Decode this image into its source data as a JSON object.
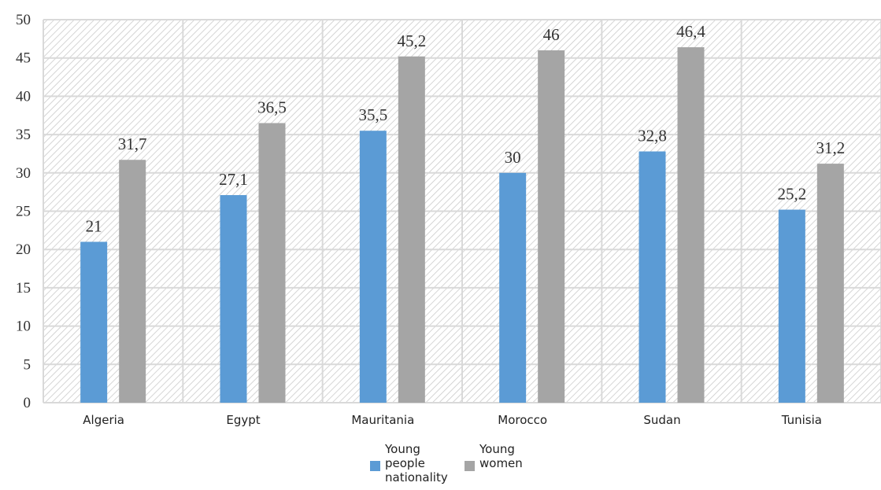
{
  "chart_data": {
    "type": "bar",
    "categories": [
      "Algeria",
      "Egypt",
      "Mauritania",
      "Morocco",
      "Sudan",
      "Tunisia"
    ],
    "series": [
      {
        "name": "Young people nationality",
        "values": [
          21,
          27.1,
          35.5,
          30,
          32.8,
          25.2
        ],
        "labels": [
          "21",
          "27,1",
          "35,5",
          "30",
          "32,8",
          "25,2"
        ],
        "color": "#5b9bd5"
      },
      {
        "name": "Young women",
        "values": [
          31.7,
          36.5,
          45.2,
          46,
          46.4,
          31.2
        ],
        "labels": [
          "31,7",
          "36,5",
          "45,2",
          "46",
          "46,4",
          "31,2"
        ],
        "color": "#a5a5a5"
      }
    ],
    "yticks": [
      "0",
      "5",
      "10",
      "15",
      "20",
      "25",
      "30",
      "35",
      "40",
      "45",
      "50"
    ],
    "ylim": [
      0,
      50
    ],
    "grid": true,
    "plot_background": "hatched",
    "legend_position": "bottom",
    "legend": {
      "items": [
        {
          "lines": [
            "Young",
            "people",
            "nationality"
          ],
          "color": "#5b9bd5"
        },
        {
          "lines": [
            "Young",
            "women"
          ],
          "color": "#a5a5a5"
        }
      ]
    }
  }
}
